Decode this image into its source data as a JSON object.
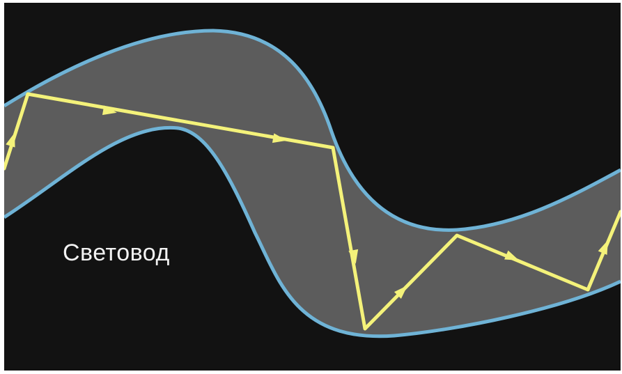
{
  "diagram": {
    "label": "Световод",
    "colors": {
      "background": "#121212",
      "fiber_core": "#5c5c5c",
      "fiber_cladding": "#6fb3d6",
      "light_ray": "#f4f27a"
    }
  }
}
